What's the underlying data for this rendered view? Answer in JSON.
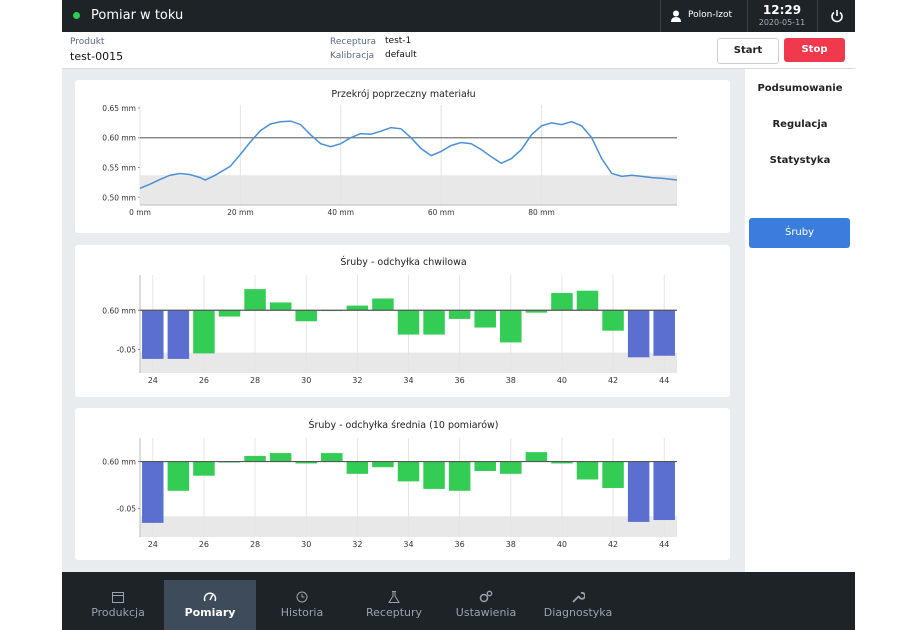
{
  "status_bar": {
    "title": "Pomiar w toku",
    "user": "Polon-Izot",
    "time": "12:29",
    "date": "2020-05-11"
  },
  "header": {
    "product_label": "Produkt",
    "product": "test-0015",
    "recipe_label": "Receptura",
    "recipe": "test-1",
    "calibration_label": "Kalibracja",
    "calibration": "default",
    "buttons": [
      "Start",
      "Stop"
    ]
  },
  "sidebar": {
    "items": [
      "Podsumowanie",
      "Regulacja",
      "Statystyka"
    ],
    "button": "Śruby"
  },
  "nav": {
    "items": [
      "Produkcja",
      "Pomiary",
      "Historia",
      "Receptury",
      "Ustawienia",
      "Diagnostyka"
    ],
    "active": 1
  },
  "chart_data": [
    {
      "type": "line",
      "title": "Przekrój poprzeczny materiału",
      "color": "#4a90d9",
      "x": [
        0,
        2,
        4,
        6,
        8,
        10,
        12,
        13,
        15,
        18,
        20,
        22,
        24,
        26,
        28,
        30,
        32,
        34,
        36,
        38,
        40,
        42,
        44,
        46,
        48,
        50,
        52,
        54,
        56,
        58,
        60,
        62,
        64,
        66,
        68,
        70,
        72,
        74,
        76,
        78,
        80,
        82,
        84,
        86,
        88,
        90,
        92,
        94,
        96,
        98,
        100,
        102,
        104,
        107
      ],
      "values": [
        0.515,
        0.522,
        0.53,
        0.537,
        0.54,
        0.538,
        0.533,
        0.529,
        0.537,
        0.552,
        0.572,
        0.593,
        0.612,
        0.623,
        0.627,
        0.628,
        0.622,
        0.605,
        0.59,
        0.585,
        0.59,
        0.6,
        0.607,
        0.606,
        0.611,
        0.617,
        0.615,
        0.6,
        0.582,
        0.57,
        0.577,
        0.587,
        0.592,
        0.59,
        0.58,
        0.568,
        0.557,
        0.565,
        0.58,
        0.605,
        0.62,
        0.625,
        0.622,
        0.627,
        0.62,
        0.6,
        0.565,
        0.54,
        0.535,
        0.537,
        0.535,
        0.533,
        0.532,
        0.529
      ],
      "xlim": [
        0,
        107
      ],
      "ylim": [
        0.487,
        0.655
      ],
      "xticks": [
        {
          "value": 0,
          "label": "0 mm"
        },
        {
          "value": 20,
          "label": "20 mm"
        },
        {
          "value": 40,
          "label": "40 mm"
        },
        {
          "value": 60,
          "label": "60 mm"
        },
        {
          "value": 80,
          "label": "80 mm"
        }
      ],
      "yticks": [
        {
          "value": 0.65,
          "label": "0.65 mm"
        },
        {
          "value": 0.6,
          "label": "0.60 mm"
        },
        {
          "value": 0.55,
          "label": "0.55 mm"
        },
        {
          "value": 0.5,
          "label": "0.50 mm"
        }
      ],
      "reference_line": 0.6,
      "shaded_below": 0.537,
      "grid": true
    },
    {
      "type": "bar",
      "title": "Śruby - odchyłka chwilowa",
      "categories": [
        "24",
        null,
        "26",
        null,
        "28",
        null,
        "30",
        null,
        "32",
        null,
        "34",
        null,
        "36",
        null,
        "38",
        null,
        "40",
        null,
        "42",
        null,
        "44"
      ],
      "values": [
        -0.062,
        -0.062,
        -0.055,
        -0.008,
        0.027,
        0.01,
        -0.014,
        -0.001,
        0.006,
        0.015,
        -0.031,
        -0.031,
        -0.011,
        -0.022,
        -0.041,
        -0.003,
        0.022,
        0.025,
        -0.026,
        -0.06,
        -0.058
      ],
      "colors": [
        "#5a6fd0",
        "#5a6fd0",
        "#33cc55",
        "#33cc55",
        "#33cc55",
        "#33cc55",
        "#33cc55",
        "#33cc55",
        "#33cc55",
        "#33cc55",
        "#33cc55",
        "#33cc55",
        "#33cc55",
        "#33cc55",
        "#33cc55",
        "#33cc55",
        "#33cc55",
        "#33cc55",
        "#33cc55",
        "#5a6fd0",
        "#5a6fd0"
      ],
      "ylim": [
        -0.08,
        0.045
      ],
      "yticks": [
        {
          "value": 0,
          "label": "0.60 mm"
        },
        -0.05
      ],
      "shaded_below": -0.054,
      "grid": true
    },
    {
      "type": "bar",
      "title": "Śruby - odchyłka średnia (10 pomiarów)",
      "categories": [
        "24",
        null,
        "26",
        null,
        "28",
        null,
        "30",
        null,
        "32",
        null,
        "34",
        null,
        "36",
        null,
        "38",
        null,
        "40",
        null,
        "42",
        null,
        "44"
      ],
      "values": [
        -0.065,
        -0.031,
        -0.015,
        -0.001,
        0.006,
        0.009,
        -0.002,
        0.009,
        -0.013,
        -0.006,
        -0.021,
        -0.029,
        -0.031,
        -0.01,
        -0.013,
        0.01,
        -0.002,
        -0.019,
        -0.028,
        -0.064,
        -0.062
      ],
      "colors": [
        "#5a6fd0",
        "#33cc55",
        "#33cc55",
        "#33cc55",
        "#33cc55",
        "#33cc55",
        "#33cc55",
        "#33cc55",
        "#33cc55",
        "#33cc55",
        "#33cc55",
        "#33cc55",
        "#33cc55",
        "#33cc55",
        "#33cc55",
        "#33cc55",
        "#33cc55",
        "#33cc55",
        "#33cc55",
        "#5a6fd0",
        "#5a6fd0"
      ],
      "ylim": [
        -0.08,
        0.025
      ],
      "yticks": [
        {
          "value": 0,
          "label": "0.60 mm"
        },
        -0.05
      ],
      "shaded_below": -0.058,
      "grid": true
    }
  ]
}
